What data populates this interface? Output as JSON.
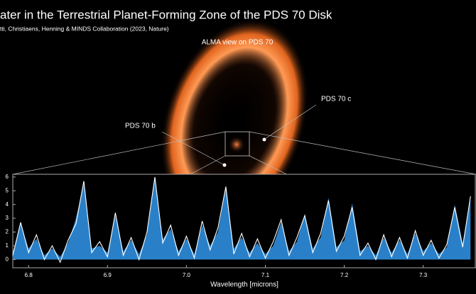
{
  "title": "ater in the Terrestrial Planet-Forming Zone of the PDS 70 Disk",
  "subtitle": "tti, Christiaens, Henning & MINDS Collaboration (2023, Nature)",
  "image_label": "ALMA view on PDS 70",
  "annotations": [
    "PDS 70 b",
    "PDS 70 c"
  ],
  "chart_data": {
    "type": "line",
    "xlabel": "Wavelength [microns]",
    "x": [
      6.78,
      6.79,
      6.8,
      6.81,
      6.82,
      6.83,
      6.84,
      6.85,
      6.86,
      6.87,
      6.88,
      6.89,
      6.9,
      6.91,
      6.92,
      6.93,
      6.94,
      6.95,
      6.96,
      6.97,
      6.98,
      6.99,
      7.0,
      7.01,
      7.02,
      7.03,
      7.04,
      7.05,
      7.06,
      7.07,
      7.08,
      7.09,
      7.1,
      7.11,
      7.12,
      7.13,
      7.14,
      7.15,
      7.16,
      7.17,
      7.18,
      7.19,
      7.2,
      7.21,
      7.22,
      7.23,
      7.24,
      7.25,
      7.26,
      7.27,
      7.28,
      7.29,
      7.3,
      7.31,
      7.32,
      7.33,
      7.34,
      7.35,
      7.36
    ],
    "series": [
      {
        "color": "#2a80c8",
        "fill": true,
        "values": [
          0.5,
          2.6,
          0.8,
          1.5,
          0.3,
          0.8,
          0.2,
          1.2,
          3.0,
          5.5,
          0.8,
          1.0,
          0.5,
          3.2,
          0.6,
          1.4,
          0.4,
          1.8,
          5.9,
          1.5,
          2.2,
          0.6,
          1.5,
          0.4,
          2.5,
          1.0,
          2.0,
          5.2,
          0.8,
          1.6,
          0.5,
          1.2,
          0.4,
          1.0,
          2.7,
          0.6,
          1.3,
          3.3,
          0.8,
          1.6,
          4.5,
          0.9,
          1.4,
          4.1,
          0.6,
          1.0,
          0.3,
          1.6,
          0.5,
          1.4,
          0.4,
          1.9,
          0.6,
          1.2,
          0.4,
          0.9,
          4.0,
          1.2,
          4.4
        ]
      },
      {
        "color": "#ffffff",
        "fill": false,
        "values": [
          0.3,
          2.7,
          0.5,
          1.8,
          0.0,
          1.0,
          -0.2,
          1.4,
          2.6,
          5.7,
          0.5,
          1.3,
          0.2,
          3.4,
          0.3,
          1.6,
          0.0,
          2.0,
          6.0,
          1.2,
          2.5,
          0.3,
          1.7,
          0.1,
          2.8,
          0.7,
          2.3,
          5.3,
          0.4,
          1.9,
          0.2,
          1.5,
          0.1,
          1.3,
          2.9,
          0.3,
          1.6,
          3.2,
          0.5,
          1.9,
          4.3,
          0.6,
          1.7,
          3.8,
          0.3,
          1.2,
          0.0,
          1.8,
          0.2,
          1.6,
          0.1,
          2.1,
          0.3,
          1.4,
          0.1,
          1.1,
          3.8,
          0.9,
          4.6
        ]
      }
    ],
    "xlim": [
      6.78,
      7.366
    ],
    "ylim": [
      -0.6,
      6.2
    ],
    "xticks": [
      6.8,
      6.9,
      {
        "value": 7.0,
        "label": "7.0"
      },
      7.1,
      7.2,
      7.3
    ],
    "yticks": [
      0,
      1,
      2,
      3,
      4,
      5,
      6
    ]
  }
}
